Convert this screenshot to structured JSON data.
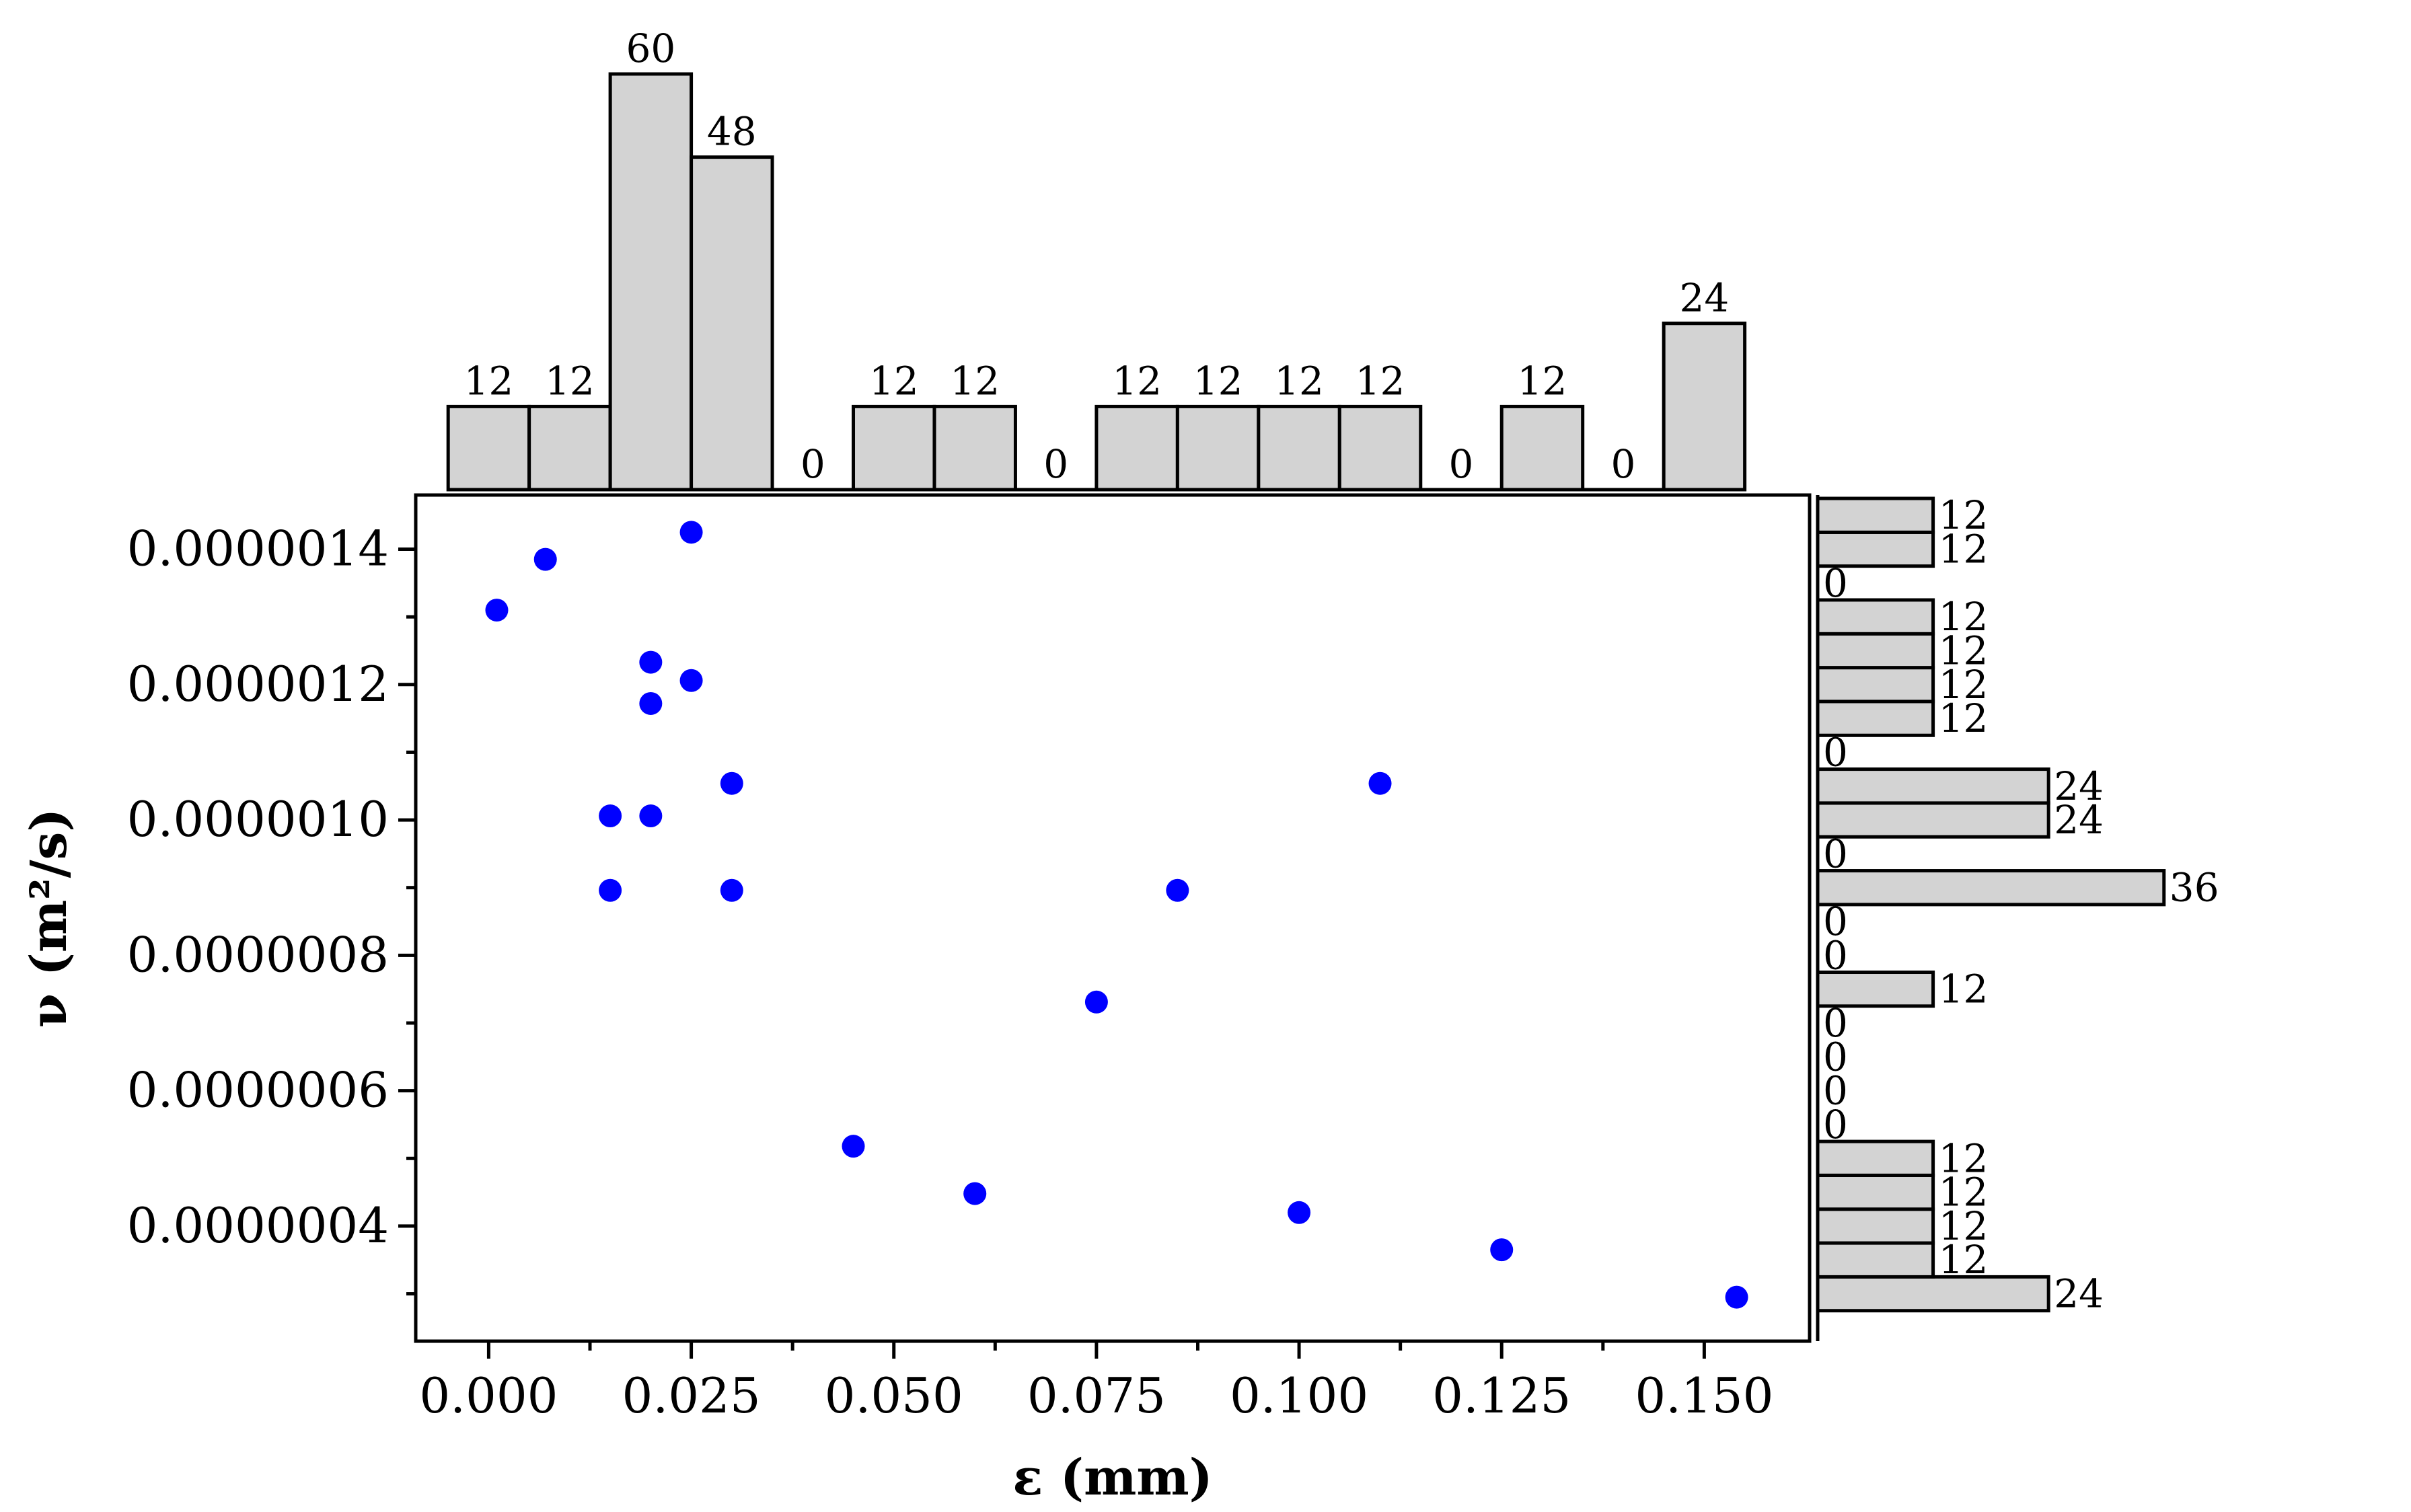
{
  "chart_data": {
    "type": "scatter",
    "title": "",
    "xlabel": "ε (mm)",
    "ylabel": "ν (m²/s)",
    "xlim": [
      -0.009,
      0.163
    ],
    "ylim": [
      2.3e-07,
      1.48e-06
    ],
    "x_ticks": [
      0.0,
      0.025,
      0.05,
      0.075,
      0.1,
      0.125,
      0.15
    ],
    "x_tick_labels": [
      "0.000",
      "0.025",
      "0.050",
      "0.075",
      "0.100",
      "0.125",
      "0.150"
    ],
    "y_ticks": [
      4e-07,
      6e-07,
      8e-07,
      1e-06,
      1.2e-06,
      1.4e-06
    ],
    "y_tick_labels": [
      "0.0000004",
      "0.0000006",
      "0.0000008",
      "0.0000010",
      "0.0000012",
      "0.0000014"
    ],
    "grid": false,
    "point_color": "#0000ff",
    "bar_color": "#d3d3d3",
    "points": [
      {
        "x": 0.001,
        "y": 1.31e-06
      },
      {
        "x": 0.007,
        "y": 1.385e-06
      },
      {
        "x": 0.025,
        "y": 1.425e-06
      },
      {
        "x": 0.02,
        "y": 1.233e-06
      },
      {
        "x": 0.025,
        "y": 1.206e-06
      },
      {
        "x": 0.02,
        "y": 1.172e-06
      },
      {
        "x": 0.03,
        "y": 1.054e-06
      },
      {
        "x": 0.015,
        "y": 1.006e-06
      },
      {
        "x": 0.02,
        "y": 1.006e-06
      },
      {
        "x": 0.015,
        "y": 8.96e-07
      },
      {
        "x": 0.03,
        "y": 8.96e-07
      },
      {
        "x": 0.085,
        "y": 8.96e-07
      },
      {
        "x": 0.11,
        "y": 1.054e-06
      },
      {
        "x": 0.075,
        "y": 7.31e-07
      },
      {
        "x": 0.045,
        "y": 5.18e-07
      },
      {
        "x": 0.06,
        "y": 4.48e-07
      },
      {
        "x": 0.1,
        "y": 4.2e-07
      },
      {
        "x": 0.125,
        "y": 3.65e-07
      },
      {
        "x": 0.154,
        "y": 2.95e-07
      }
    ],
    "x_histogram": {
      "bin_width": 0.01,
      "bins": [
        {
          "start": -0.005,
          "count": 12
        },
        {
          "start": 0.005,
          "count": 12
        },
        {
          "start": 0.015,
          "count": 60
        },
        {
          "start": 0.025,
          "count": 48
        },
        {
          "start": 0.035,
          "count": 0
        },
        {
          "start": 0.045,
          "count": 12
        },
        {
          "start": 0.055,
          "count": 12
        },
        {
          "start": 0.065,
          "count": 0
        },
        {
          "start": 0.075,
          "count": 12
        },
        {
          "start": 0.085,
          "count": 12
        },
        {
          "start": 0.095,
          "count": 12
        },
        {
          "start": 0.105,
          "count": 12
        },
        {
          "start": 0.115,
          "count": 0
        },
        {
          "start": 0.125,
          "count": 12
        },
        {
          "start": 0.135,
          "count": 0
        },
        {
          "start": 0.145,
          "count": 24
        }
      ],
      "labels": [
        "12",
        "12",
        "60",
        "48",
        "0",
        "12",
        "12",
        "0",
        "12",
        "12",
        "12",
        "12",
        "0",
        "12",
        "0",
        "24"
      ]
    },
    "y_histogram": {
      "bin_height": 5e-08,
      "bins": [
        {
          "start": 2.75e-07,
          "count": 24
        },
        {
          "start": 3.25e-07,
          "count": 12
        },
        {
          "start": 3.75e-07,
          "count": 12
        },
        {
          "start": 4.25e-07,
          "count": 12
        },
        {
          "start": 4.75e-07,
          "count": 12
        },
        {
          "start": 5.25e-07,
          "count": 0
        },
        {
          "start": 5.75e-07,
          "count": 0
        },
        {
          "start": 6.25e-07,
          "count": 0
        },
        {
          "start": 6.75e-07,
          "count": 0
        },
        {
          "start": 7.25e-07,
          "count": 12
        },
        {
          "start": 7.75e-07,
          "count": 0
        },
        {
          "start": 8.25e-07,
          "count": 0
        },
        {
          "start": 8.75e-07,
          "count": 36
        },
        {
          "start": 9.25e-07,
          "count": 0
        },
        {
          "start": 9.75e-07,
          "count": 24
        },
        {
          "start": 1.025e-06,
          "count": 24
        },
        {
          "start": 1.075e-06,
          "count": 0
        },
        {
          "start": 1.125e-06,
          "count": 12
        },
        {
          "start": 1.175e-06,
          "count": 12
        },
        {
          "start": 1.225e-06,
          "count": 12
        },
        {
          "start": 1.275e-06,
          "count": 12
        },
        {
          "start": 1.325e-06,
          "count": 0
        },
        {
          "start": 1.375e-06,
          "count": 12
        },
        {
          "start": 1.425e-06,
          "count": 12
        }
      ],
      "labels": [
        "24",
        "12",
        "12",
        "12",
        "12",
        "0",
        "0",
        "0",
        "0",
        "12",
        "0",
        "0",
        "36",
        "0",
        "24",
        "24",
        "0",
        "12",
        "12",
        "12",
        "12",
        "0",
        "12",
        "12"
      ]
    }
  }
}
